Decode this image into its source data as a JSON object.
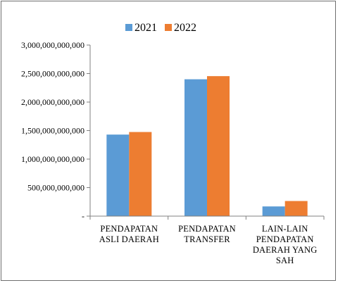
{
  "chart_data": {
    "type": "bar",
    "categories": [
      [
        "PENDAPATAN",
        "ASLI DAERAH"
      ],
      [
        "PENDAPATAN",
        "TRANSFER"
      ],
      [
        "LAIN-LAIN",
        "PENDAPATAN",
        "DAERAH YANG",
        "SAH"
      ]
    ],
    "series": [
      {
        "name": "2021",
        "color": "#5b9bd5",
        "values": [
          1430000000000,
          2400000000000,
          170000000000
        ]
      },
      {
        "name": "2022",
        "color": "#ed7d31",
        "values": [
          1475000000000,
          2455000000000,
          265000000000
        ]
      }
    ],
    "y_ticks": [
      {
        "value": 0,
        "label": "-"
      },
      {
        "value": 500000000000,
        "label": "500,000,000,000"
      },
      {
        "value": 1000000000000,
        "label": "1,000,000,000,000"
      },
      {
        "value": 1500000000000,
        "label": "1,500,000,000,000"
      },
      {
        "value": 2000000000000,
        "label": "2,000,000,000,000"
      },
      {
        "value": 2500000000000,
        "label": "2,500,000,000,000"
      },
      {
        "value": 3000000000000,
        "label": "3,000,000,000,000"
      }
    ],
    "ylim": [
      0,
      3000000000000
    ],
    "grid": false,
    "legend": "top-center",
    "title": "",
    "xlabel": "",
    "ylabel": ""
  }
}
